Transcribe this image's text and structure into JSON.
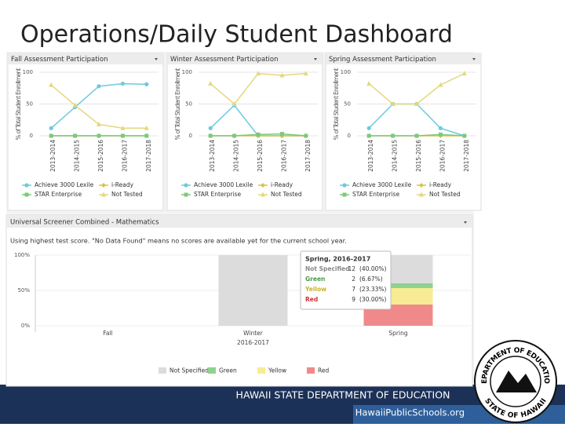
{
  "title": "Operations/Daily Student Dashboard",
  "chart_data": [
    {
      "type": "line",
      "title": "Fall Assessment Participation",
      "ylabel": "% of Total Student Enrollment",
      "categories": [
        "2013-2014",
        "2014-2015",
        "2015-2016",
        "2016-2017",
        "2017-2018"
      ],
      "ylim": [
        0,
        100
      ],
      "yticks": [
        0,
        50,
        100
      ],
      "series": [
        {
          "name": "Achieve 3000 Lexile",
          "color": "#6ccbdc",
          "values": [
            12,
            45,
            78,
            82,
            81
          ]
        },
        {
          "name": "i-Ready",
          "color": "#d9c24a",
          "values": [
            0,
            0,
            0,
            0,
            0
          ]
        },
        {
          "name": "STAR Enterprise",
          "color": "#7dc87d",
          "values": [
            0,
            0,
            0,
            0,
            0
          ]
        },
        {
          "name": "Not Tested",
          "color": "#e3d87e",
          "values": [
            80,
            48,
            18,
            12,
            12
          ]
        }
      ]
    },
    {
      "type": "line",
      "title": "Winter Assessment Participation",
      "ylabel": "% of Total Student Enrollment",
      "categories": [
        "2013-2014",
        "2014-2015",
        "2015-2016",
        "2016-2017",
        "2017-2018"
      ],
      "ylim": [
        0,
        100
      ],
      "yticks": [
        0,
        50,
        100
      ],
      "series": [
        {
          "name": "Achieve 3000 Lexile",
          "color": "#6ccbdc",
          "values": [
            12,
            48,
            0,
            0,
            0
          ]
        },
        {
          "name": "i-Ready",
          "color": "#d9c24a",
          "values": [
            0,
            0,
            0,
            0,
            0
          ]
        },
        {
          "name": "STAR Enterprise",
          "color": "#7dc87d",
          "values": [
            0,
            0,
            2,
            3,
            0
          ]
        },
        {
          "name": "Not Tested",
          "color": "#e3d87e",
          "values": [
            82,
            50,
            98,
            95,
            98
          ]
        }
      ]
    },
    {
      "type": "line",
      "title": "Spring Assessment Participation",
      "ylabel": "% of Total Student Enrollment",
      "categories": [
        "2013-2014",
        "2014-2015",
        "2015-2016",
        "2016-2017",
        "2017-2018"
      ],
      "ylim": [
        0,
        100
      ],
      "yticks": [
        0,
        50,
        100
      ],
      "series": [
        {
          "name": "Achieve 3000 Lexile",
          "color": "#6ccbdc",
          "values": [
            12,
            50,
            50,
            12,
            0
          ]
        },
        {
          "name": "i-Ready",
          "color": "#d9c24a",
          "values": [
            0,
            0,
            0,
            0,
            0
          ]
        },
        {
          "name": "STAR Enterprise",
          "color": "#7dc87d",
          "values": [
            0,
            0,
            0,
            2,
            0
          ]
        },
        {
          "name": "Not Tested",
          "color": "#e3d87e",
          "values": [
            82,
            50,
            50,
            80,
            98
          ]
        }
      ]
    },
    {
      "type": "stacked_bar",
      "title": "Universal Screener Combined - Mathematics",
      "subtitle": "Using highest test score. \"No Data Found\" means no scores are available yet for the current school year.",
      "categories": [
        "Fall",
        "Winter",
        "Spring"
      ],
      "xlabel": "2016-2017",
      "ylim": [
        0,
        100
      ],
      "yticks": [
        {
          "value": 0,
          "label": "0%"
        },
        {
          "value": 50,
          "label": "50%"
        },
        {
          "value": 100,
          "label": "100%"
        }
      ],
      "series": [
        {
          "name": "Not Specified",
          "color": "#dcdcdc",
          "values": [
            0,
            100,
            40
          ]
        },
        {
          "name": "Green",
          "color": "#8fd18f",
          "values": [
            0,
            0,
            6.67
          ]
        },
        {
          "name": "Yellow",
          "color": "#f7ec93",
          "values": [
            0,
            0,
            23.33
          ]
        },
        {
          "name": "Red",
          "color": "#f08a8a",
          "values": [
            0,
            0,
            30
          ]
        }
      ],
      "tooltip": {
        "title": "Spring, 2016-2017",
        "rows": [
          {
            "name": "Not Specified",
            "count": "12",
            "pct": "(40.00%)"
          },
          {
            "name": "Green",
            "count": "2",
            "pct": "(6.67%)"
          },
          {
            "name": "Yellow",
            "count": "7",
            "pct": "(23.33%)"
          },
          {
            "name": "Red",
            "count": "9",
            "pct": "(30.00%)"
          }
        ]
      }
    }
  ],
  "footer": {
    "org": "HAWAII STATE DEPARTMENT OF EDUCATION",
    "url": "HawaiiPublicSchools.org",
    "seal_top": "DEPARTMENT OF EDUCATION",
    "seal_bottom": "STATE OF HAWAII"
  }
}
